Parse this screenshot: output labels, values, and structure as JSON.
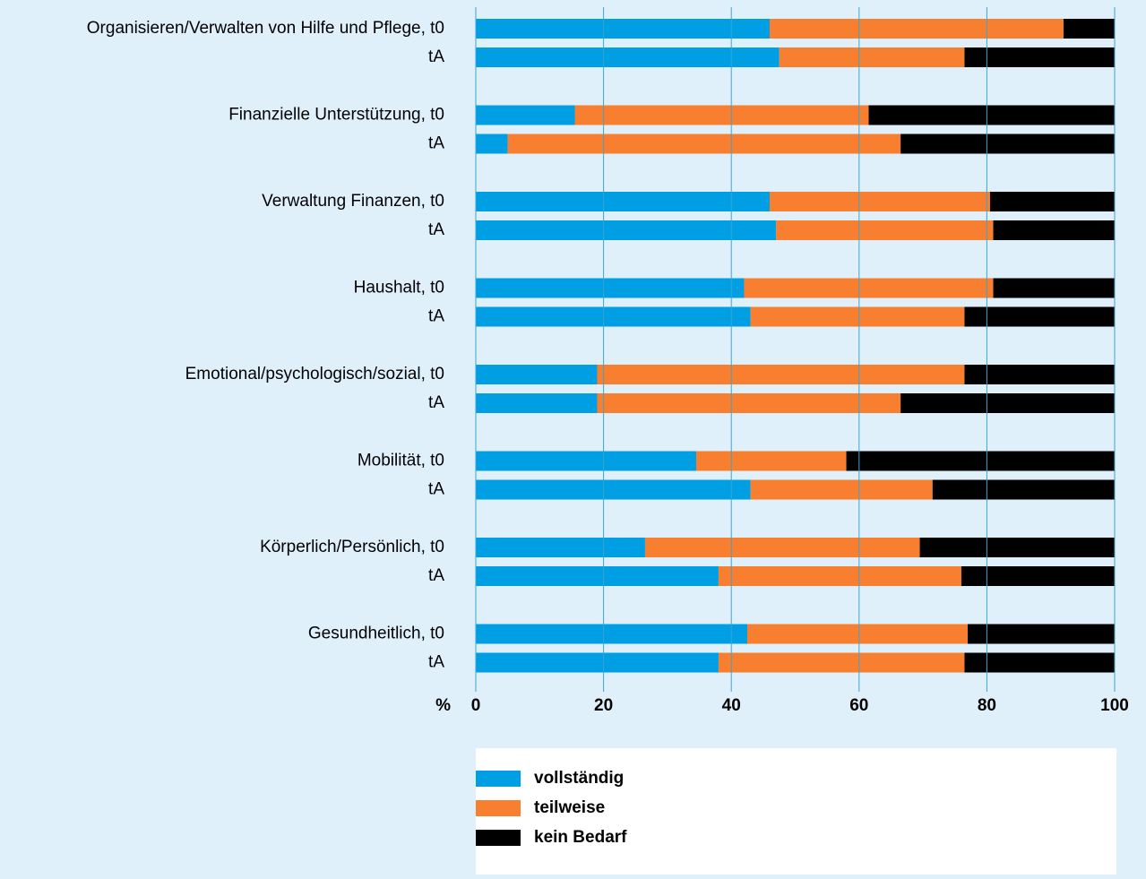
{
  "chart_data": {
    "type": "stacked_barh",
    "categories": [
      "Organisieren/Verwalten von Hilfe und Pflege, t0",
      "tA",
      "Finanzielle Unterstützung, t0",
      "tA",
      "Verwaltung Finanzen, t0",
      "tA",
      "Haushalt, t0",
      "tA",
      "Emotional/psychologisch/sozial, t0",
      "tA",
      "Mobilität, t0",
      "tA",
      "Körperlich/Persönlich, t0",
      "tA",
      "Gesundheitlich, t0",
      "tA"
    ],
    "series": [
      {
        "name": "vollständig",
        "color": "#009fe3",
        "values": [
          46,
          47.5,
          15.5,
          5,
          46,
          47,
          42,
          43,
          19,
          19,
          34.5,
          43,
          26.5,
          38,
          42.5,
          38
        ]
      },
      {
        "name": "teilweise",
        "color": "#f77f2f",
        "values": [
          46,
          29,
          46,
          61.5,
          34.5,
          34,
          39,
          33.5,
          57.5,
          47.5,
          23.5,
          28.5,
          43,
          38,
          34.5,
          38.5
        ]
      },
      {
        "name": "kein Bedarf",
        "color": "#000000",
        "values": [
          8,
          23.5,
          38.5,
          33.5,
          19.5,
          19,
          19,
          23.5,
          23.5,
          33.5,
          42,
          28.5,
          30.5,
          24,
          23,
          23.5
        ]
      }
    ],
    "xlabel": "%",
    "xlim": [
      0,
      100
    ],
    "xticks": [
      0,
      20,
      40,
      60,
      80,
      100
    ],
    "grid": true
  }
}
